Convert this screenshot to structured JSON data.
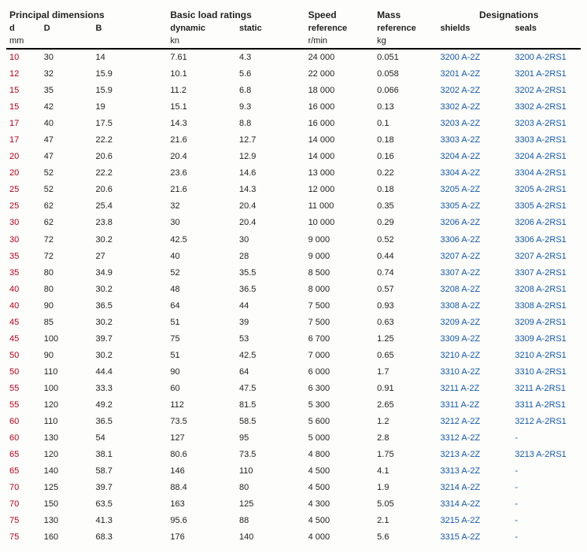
{
  "header": {
    "groups": {
      "principal": "Principal dimensions",
      "load": "Basic load ratings",
      "speed": "Speed",
      "mass": "Mass",
      "designations": "Designations"
    },
    "sub": {
      "d": "d",
      "D": "D",
      "B": "B",
      "dynamic": "dynamic",
      "static": "static",
      "speed": "reference",
      "mass": "reference",
      "shields": "shields",
      "seals": "seals"
    },
    "units": {
      "mm": "mm",
      "kn": "kn",
      "rmin": "r/min",
      "kg": "kg"
    }
  },
  "rows": [
    {
      "d": "10",
      "D": "30",
      "B": "14",
      "dyn": "7.61",
      "sta": "4.3",
      "spd": "24 000",
      "mas": "0.051",
      "sh": "3200 A-2Z",
      "se": "3200 A-2RS1"
    },
    {
      "d": "12",
      "D": "32",
      "B": "15.9",
      "dyn": "10.1",
      "sta": "5.6",
      "spd": "22 000",
      "mas": "0.058",
      "sh": "3201 A-2Z",
      "se": "3201 A-2RS1"
    },
    {
      "d": "15",
      "D": "35",
      "B": "15.9",
      "dyn": "11.2",
      "sta": "6.8",
      "spd": "18 000",
      "mas": "0.066",
      "sh": "3202 A-2Z",
      "se": "3202 A-2RS1"
    },
    {
      "d": "15",
      "D": "42",
      "B": "19",
      "dyn": "15.1",
      "sta": "9.3",
      "spd": "16 000",
      "mas": "0.13",
      "sh": "3302 A-2Z",
      "se": "3302 A-2RS1"
    },
    {
      "d": "17",
      "D": "40",
      "B": "17.5",
      "dyn": "14.3",
      "sta": "8.8",
      "spd": "16 000",
      "mas": "0.1",
      "sh": "3203 A-2Z",
      "se": "3203 A-2RS1"
    },
    {
      "d": "17",
      "D": "47",
      "B": "22.2",
      "dyn": "21.6",
      "sta": "12.7",
      "spd": "14 000",
      "mas": "0.18",
      "sh": "3303 A-2Z",
      "se": "3303 A-2RS1"
    },
    {
      "d": "20",
      "D": "47",
      "B": "20.6",
      "dyn": "20.4",
      "sta": "12.9",
      "spd": "14 000",
      "mas": "0.16",
      "sh": "3204 A-2Z",
      "se": "3204 A-2RS1"
    },
    {
      "d": "20",
      "D": "52",
      "B": "22.2",
      "dyn": "23.6",
      "sta": "14.6",
      "spd": "13 000",
      "mas": "0.22",
      "sh": "3304 A-2Z",
      "se": "3304 A-2RS1"
    },
    {
      "d": "25",
      "D": "52",
      "B": "20.6",
      "dyn": "21.6",
      "sta": "14.3",
      "spd": "12 000",
      "mas": "0.18",
      "sh": "3205 A-2Z",
      "se": "3205 A-2RS1"
    },
    {
      "d": "25",
      "D": "62",
      "B": "25.4",
      "dyn": "32",
      "sta": "20.4",
      "spd": "11 000",
      "mas": "0.35",
      "sh": "3305 A-2Z",
      "se": "3305 A-2RS1"
    },
    {
      "d": "30",
      "D": "62",
      "B": "23.8",
      "dyn": "30",
      "sta": "20.4",
      "spd": "10 000",
      "mas": "0.29",
      "sh": "3206 A-2Z",
      "se": "3206 A-2RS1"
    },
    {
      "d": "30",
      "D": "72",
      "B": "30.2",
      "dyn": "42.5",
      "sta": "30",
      "spd": "9 000",
      "mas": "0.52",
      "sh": "3306 A-2Z",
      "se": "3306 A-2RS1"
    },
    {
      "d": "35",
      "D": "72",
      "B": "27",
      "dyn": "40",
      "sta": "28",
      "spd": "9 000",
      "mas": "0.44",
      "sh": "3207 A-2Z",
      "se": "3207 A-2RS1"
    },
    {
      "d": "35",
      "D": "80",
      "B": "34.9",
      "dyn": "52",
      "sta": "35.5",
      "spd": "8 500",
      "mas": "0.74",
      "sh": "3307 A-2Z",
      "se": "3307 A-2RS1"
    },
    {
      "d": "40",
      "D": "80",
      "B": "30.2",
      "dyn": "48",
      "sta": "36.5",
      "spd": "8 000",
      "mas": "0.57",
      "sh": "3208 A-2Z",
      "se": "3208 A-2RS1"
    },
    {
      "d": "40",
      "D": "90",
      "B": "36.5",
      "dyn": "64",
      "sta": "44",
      "spd": "7 500",
      "mas": "0.93",
      "sh": "3308 A-2Z",
      "se": "3308 A-2RS1"
    },
    {
      "d": "45",
      "D": "85",
      "B": "30.2",
      "dyn": "51",
      "sta": "39",
      "spd": "7 500",
      "mas": "0.63",
      "sh": "3209 A-2Z",
      "se": "3209 A-2RS1"
    },
    {
      "d": "45",
      "D": "100",
      "B": "39.7",
      "dyn": "75",
      "sta": "53",
      "spd": "6 700",
      "mas": "1.25",
      "sh": "3309 A-2Z",
      "se": "3309 A-2RS1"
    },
    {
      "d": "50",
      "D": "90",
      "B": "30.2",
      "dyn": "51",
      "sta": "42.5",
      "spd": "7 000",
      "mas": "0.65",
      "sh": "3210 A-2Z",
      "se": "3210 A-2RS1"
    },
    {
      "d": "50",
      "D": "110",
      "B": "44.4",
      "dyn": "90",
      "sta": "64",
      "spd": "6 000",
      "mas": "1.7",
      "sh": "3310 A-2Z",
      "se": "3310 A-2RS1"
    },
    {
      "d": "55",
      "D": "100",
      "B": "33.3",
      "dyn": "60",
      "sta": "47.5",
      "spd": "6 300",
      "mas": "0.91",
      "sh": "3211 A-2Z",
      "se": "3211 A-2RS1"
    },
    {
      "d": "55",
      "D": "120",
      "B": "49.2",
      "dyn": "112",
      "sta": "81.5",
      "spd": "5 300",
      "mas": "2.65",
      "sh": "3311 A-2Z",
      "se": "3311 A-2RS1"
    },
    {
      "d": "60",
      "D": "110",
      "B": "36.5",
      "dyn": "73.5",
      "sta": "58.5",
      "spd": "5 600",
      "mas": "1.2",
      "sh": "3212 A-2Z",
      "se": "3212 A-2RS1"
    },
    {
      "d": "60",
      "D": "130",
      "B": "54",
      "dyn": "127",
      "sta": "95",
      "spd": "5 000",
      "mas": "2.8",
      "sh": "3312 A-2Z",
      "se": "-"
    },
    {
      "d": "65",
      "D": "120",
      "B": "38.1",
      "dyn": "80.6",
      "sta": "73.5",
      "spd": "4 800",
      "mas": "1.75",
      "sh": "3213 A-2Z",
      "se": "3213 A-2RS1"
    },
    {
      "d": "65",
      "D": "140",
      "B": "58.7",
      "dyn": "146",
      "sta": "110",
      "spd": "4 500",
      "mas": "4.1",
      "sh": "3313 A-2Z",
      "se": "-"
    },
    {
      "d": "70",
      "D": "125",
      "B": "39.7",
      "dyn": "88.4",
      "sta": "80",
      "spd": "4 500",
      "mas": "1.9",
      "sh": "3214 A-2Z",
      "se": "-"
    },
    {
      "d": "70",
      "D": "150",
      "B": "63.5",
      "dyn": "163",
      "sta": "125",
      "spd": "4 300",
      "mas": "5.05",
      "sh": "3314 A-2Z",
      "se": "-"
    },
    {
      "d": "75",
      "D": "130",
      "B": "41.3",
      "dyn": "95.6",
      "sta": "88",
      "spd": "4 500",
      "mas": "2.1",
      "sh": "3215 A-2Z",
      "se": "-"
    },
    {
      "d": "75",
      "D": "160",
      "B": "68.3",
      "dyn": "176",
      "sta": "140",
      "spd": "4 000",
      "mas": "5.6",
      "sh": "3315 A-2Z",
      "se": "-"
    }
  ]
}
